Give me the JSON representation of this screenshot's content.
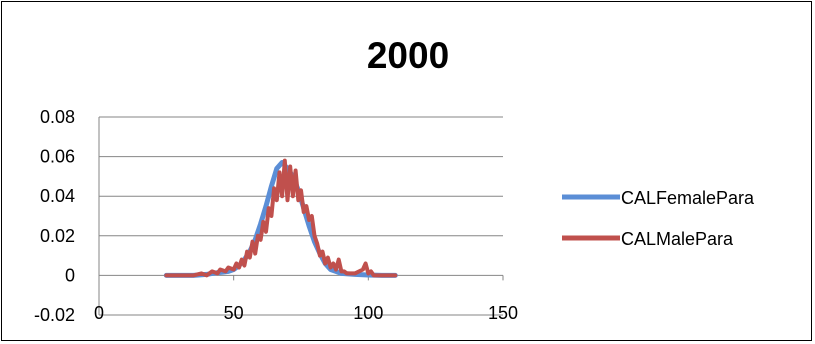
{
  "chart_data": {
    "type": "line",
    "title": "2000",
    "xlabel": "",
    "ylabel": "",
    "xlim": [
      0,
      150
    ],
    "ylim": [
      -0.02,
      0.08
    ],
    "x_ticks": [
      0,
      50,
      100,
      150
    ],
    "y_ticks": [
      -0.02,
      0,
      0.02,
      0.04,
      0.06,
      0.08
    ],
    "y_tick_labels": [
      "-0.02",
      "0",
      "0.02",
      "0.04",
      "0.06",
      "0.08"
    ],
    "x_tick_labels": [
      "0",
      "50",
      "100",
      "150"
    ],
    "grid": "horizontal",
    "legend_position": "right",
    "series": [
      {
        "name": "CALFemalePara",
        "color": "#5B8ED6",
        "x": [
          25,
          30,
          35,
          40,
          42,
          45,
          48,
          50,
          52,
          54,
          56,
          58,
          60,
          62,
          64,
          66,
          68,
          70,
          72,
          74,
          76,
          78,
          80,
          82,
          84,
          86,
          88,
          90,
          95,
          100,
          105,
          110
        ],
        "y": [
          0,
          0,
          0,
          0.0005,
          0.001,
          0.0015,
          0.002,
          0.003,
          0.005,
          0.008,
          0.012,
          0.018,
          0.026,
          0.035,
          0.045,
          0.054,
          0.057,
          0.054,
          0.05,
          0.043,
          0.034,
          0.025,
          0.017,
          0.011,
          0.006,
          0.003,
          0.002,
          0.001,
          0.0005,
          0.0002,
          0,
          0
        ]
      },
      {
        "name": "CALMalePara",
        "color": "#C0504D",
        "x": [
          25,
          30,
          35,
          38,
          40,
          42,
          44,
          45,
          47,
          48,
          50,
          51,
          52,
          53,
          54,
          55,
          56,
          57,
          58,
          59,
          60,
          61,
          62,
          63,
          64,
          65,
          66,
          67,
          68,
          69,
          70,
          71,
          72,
          73,
          74,
          75,
          76,
          77,
          78,
          79,
          80,
          81,
          82,
          83,
          84,
          85,
          86,
          87,
          88,
          89,
          90,
          91,
          92,
          95,
          98,
          99,
          100,
          101,
          102,
          105,
          110
        ],
        "y": [
          0,
          0,
          0,
          0.001,
          0,
          0.002,
          0.001,
          0.003,
          0.002,
          0.004,
          0.003,
          0.006,
          0.004,
          0.008,
          0.005,
          0.012,
          0.009,
          0.017,
          0.011,
          0.02,
          0.018,
          0.027,
          0.022,
          0.034,
          0.03,
          0.044,
          0.038,
          0.052,
          0.04,
          0.058,
          0.038,
          0.055,
          0.04,
          0.053,
          0.038,
          0.043,
          0.032,
          0.035,
          0.028,
          0.03,
          0.02,
          0.016,
          0.01,
          0.012,
          0.006,
          0.009,
          0.004,
          0.006,
          0.003,
          0.008,
          0.002,
          0.002,
          0.001,
          0.001,
          0.003,
          0.006,
          0.001,
          0.002,
          0,
          0,
          0
        ]
      }
    ]
  }
}
